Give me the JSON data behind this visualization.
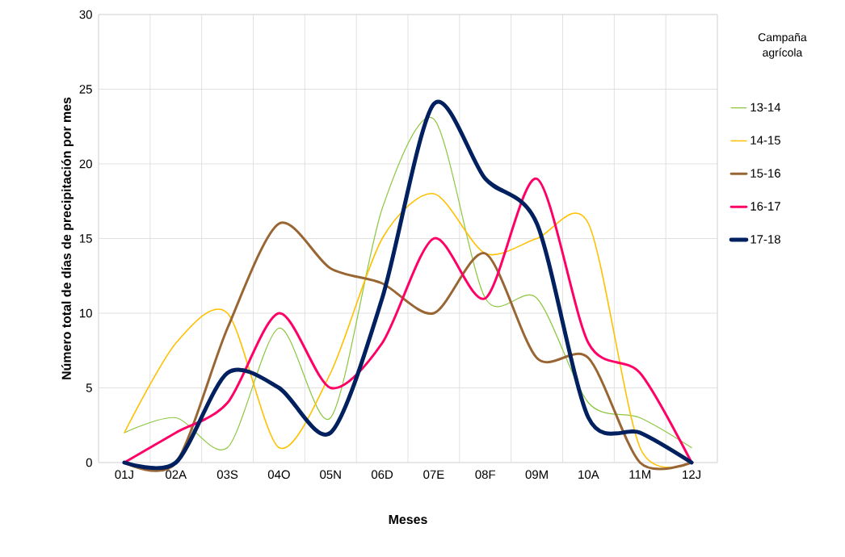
{
  "chart_data": {
    "type": "line",
    "xlabel": "Meses",
    "ylabel": "Número total de días de precipitación por mes",
    "legend_title": "Campaña agrícola",
    "categories": [
      "01J",
      "02A",
      "03S",
      "04O",
      "05N",
      "06D",
      "07E",
      "08F",
      "09M",
      "10A",
      "11M",
      "12J"
    ],
    "ylim": [
      0,
      30
    ],
    "yticks": [
      0,
      5,
      10,
      15,
      20,
      25,
      30
    ],
    "grid": true,
    "legend": "right",
    "marker": "none",
    "line_style": "solid",
    "series": [
      {
        "name": "13-14",
        "color": "#8cc63f",
        "values": [
          2,
          3,
          1,
          9,
          3,
          17,
          23,
          11,
          11,
          4,
          3,
          1
        ]
      },
      {
        "name": "14-15",
        "color": "#ffc000",
        "values": [
          2,
          8,
          10,
          1,
          6,
          15,
          18,
          14,
          15,
          16,
          1,
          0
        ]
      },
      {
        "name": "15-16",
        "color": "#996633",
        "values": [
          0,
          0,
          9,
          16,
          13,
          12,
          10,
          14,
          7,
          7,
          0,
          0
        ]
      },
      {
        "name": "16-17",
        "color": "#ff0066",
        "values": [
          0,
          2,
          4,
          10,
          5,
          8,
          15,
          11,
          19,
          8,
          6,
          0
        ]
      },
      {
        "name": "17-18",
        "color": "#002060",
        "values": [
          0,
          0,
          6,
          5,
          2,
          11,
          24,
          19,
          16,
          3,
          2,
          0
        ]
      }
    ]
  }
}
